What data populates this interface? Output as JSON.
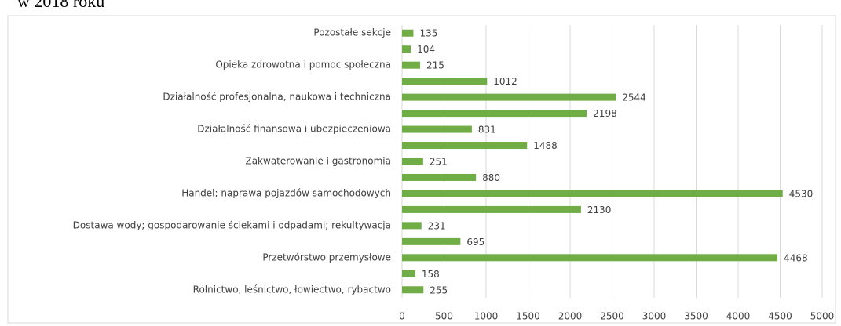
{
  "chart_data": {
    "type": "bar",
    "orientation": "horizontal",
    "title": "w 2018 roku",
    "categories": [
      "Pozostałe sekcje",
      null,
      "Opieka zdrowotna i pomoc społeczna",
      null,
      "Działalność profesjonalna, naukowa i techniczna",
      null,
      "Działalność finansowa i ubezpieczeniowa",
      null,
      "Zakwaterowanie i gastronomia",
      null,
      "Handel; naprawa pojazdów samochodowych",
      null,
      "Dostawa wody; gospodarowanie ściekami i odpadami; rekultywacja",
      null,
      "Przetwórstwo przemysłowe",
      null,
      "Rolnictwo, leśnictwo, łowiectwo, rybactwo"
    ],
    "values": [
      135,
      104,
      215,
      1012,
      2544,
      2198,
      831,
      1488,
      251,
      880,
      4530,
      2130,
      231,
      695,
      4468,
      158,
      255
    ],
    "color": "#70ad47",
    "xlim": [
      0,
      5000
    ],
    "xticks": [
      0,
      500,
      1000,
      1500,
      2000,
      2500,
      3000,
      3500,
      4000,
      4500,
      5000
    ],
    "grid": true
  }
}
